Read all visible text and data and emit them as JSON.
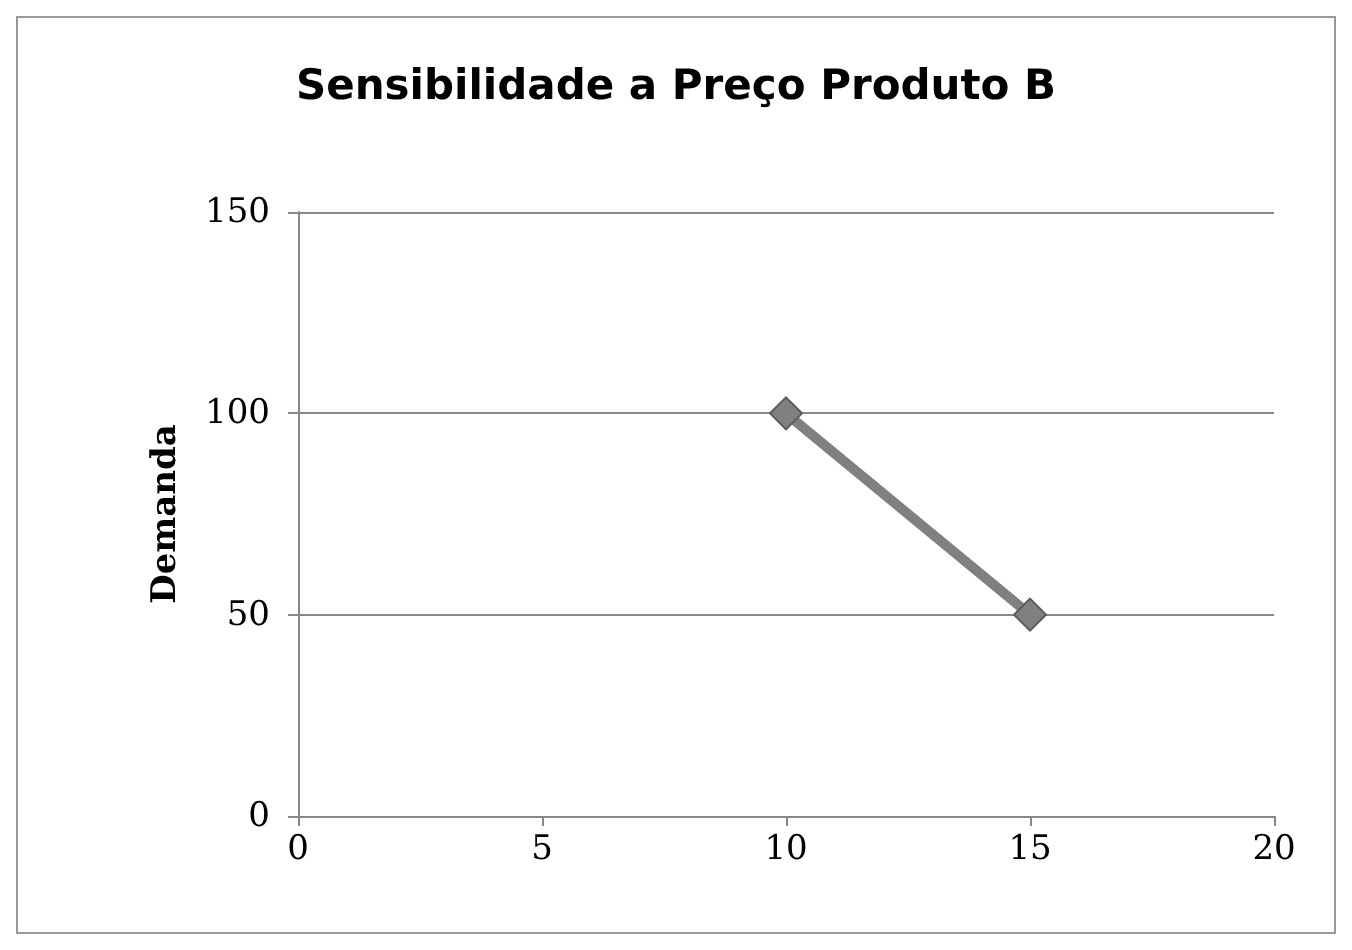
{
  "chart_data": {
    "type": "line",
    "title": "Sensibilidade a Preço Produto B",
    "ylabel": "Demanda",
    "x": [
      10,
      15
    ],
    "series": [
      {
        "color": "#808080",
        "values": [
          100,
          50
        ]
      }
    ],
    "xlim": [
      0,
      20
    ],
    "xticks": [
      0,
      5,
      10,
      15,
      20
    ],
    "ylim": [
      0,
      150
    ],
    "yticks": [
      0,
      50,
      100,
      150
    ],
    "grid": "y",
    "marker": "diamond",
    "line_style": "solid"
  }
}
